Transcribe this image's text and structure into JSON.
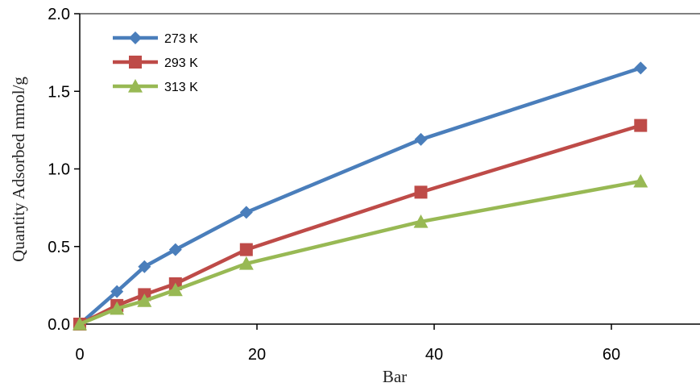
{
  "chart_data": {
    "type": "line",
    "title": "",
    "xlabel": "Bar",
    "ylabel": "Quantity Adsorbed mmol/g",
    "xlim": [
      0,
      70
    ],
    "ylim": [
      0,
      2.0
    ],
    "x_ticks": [
      "0",
      "20",
      "40",
      "60"
    ],
    "y_ticks": [
      "0.0",
      "0.5",
      "1.0",
      "1.5",
      "2.0"
    ],
    "grid": false,
    "legend_position": "top-left",
    "series": [
      {
        "name": "273 K",
        "color": "#4A7EBB",
        "marker": "diamond",
        "x": [
          0,
          4.2,
          7.3,
          10.8,
          18.8,
          38.5,
          63.3
        ],
        "y": [
          0.0,
          0.21,
          0.37,
          0.48,
          0.72,
          1.19,
          1.65
        ]
      },
      {
        "name": "293 K",
        "color": "#BE4B48",
        "marker": "square",
        "x": [
          0,
          4.2,
          7.3,
          10.8,
          18.8,
          38.5,
          63.3
        ],
        "y": [
          0.0,
          0.12,
          0.19,
          0.26,
          0.48,
          0.85,
          1.28
        ]
      },
      {
        "name": "313 K",
        "color": "#98B954",
        "marker": "triangle",
        "x": [
          0,
          4.2,
          7.3,
          10.8,
          18.8,
          38.5,
          63.3
        ],
        "y": [
          0.0,
          0.1,
          0.15,
          0.22,
          0.39,
          0.66,
          0.92
        ]
      }
    ]
  }
}
